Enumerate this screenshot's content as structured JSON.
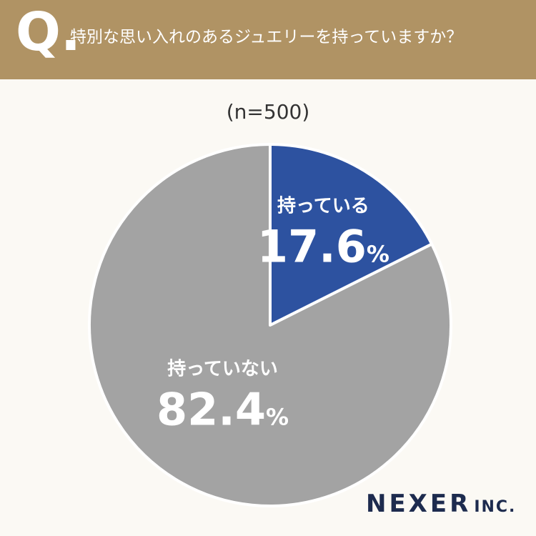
{
  "header": {
    "q_letter": "Q.",
    "question": "特別な思い入れのあるジュエリーを持っていますか？"
  },
  "sample_size": "(n=500)",
  "logo": {
    "main": "NEXER",
    "sub": "INC."
  },
  "colors": {
    "header_bg": "#b09364",
    "background": "#fbf9f4",
    "slice_yes": "#2d52a0",
    "slice_no": "#a3a3a3",
    "label_text": "#ffffff",
    "logo_text": "#1d2b4e"
  },
  "chart_data": {
    "type": "pie",
    "title": "",
    "slices": [
      {
        "label": "持っている",
        "value": 17.6,
        "display": "17.6",
        "unit": "%",
        "color": "#2d52a0"
      },
      {
        "label": "持っていない",
        "value": 82.4,
        "display": "82.4",
        "unit": "%",
        "color": "#a3a3a3"
      }
    ],
    "start": "12 o'clock",
    "direction": "clockwise"
  }
}
